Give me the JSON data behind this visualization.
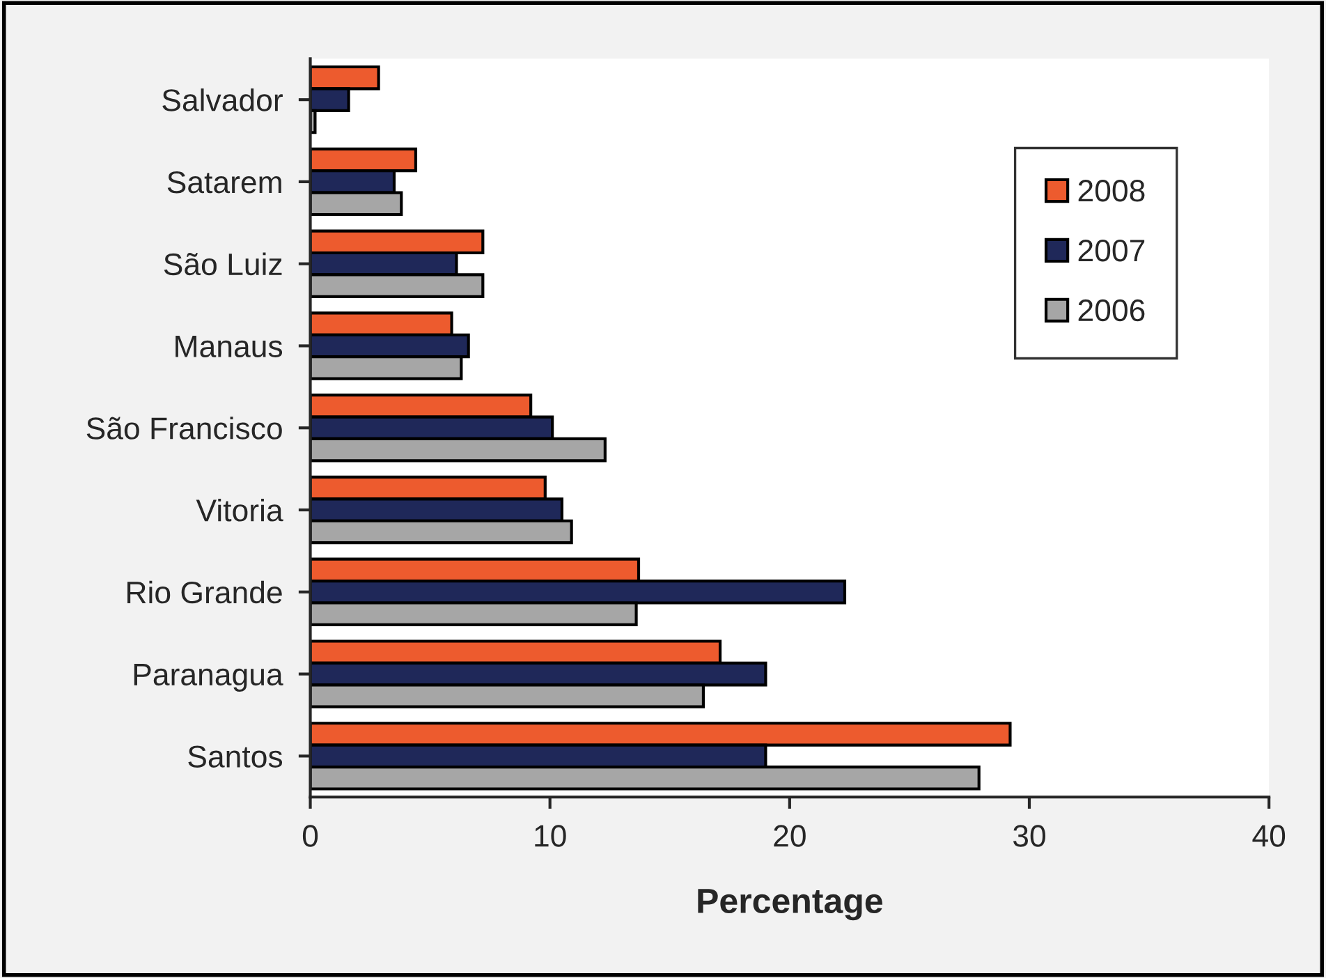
{
  "chart_data": {
    "type": "bar",
    "orientation": "horizontal",
    "xlabel": "Percentage",
    "categories": [
      "Salvador",
      "Satarem",
      "São Luiz",
      "Manaus",
      "São Francisco",
      "Vitoria",
      "Rio Grande",
      "Paranagua",
      "Santos"
    ],
    "series": [
      {
        "name": "2008",
        "color": "#ed5b2e",
        "values": [
          2.85,
          4.4,
          7.2,
          5.9,
          9.2,
          9.8,
          13.7,
          17.1,
          29.2
        ]
      },
      {
        "name": "2007",
        "color": "#1f2859",
        "values": [
          1.6,
          3.5,
          6.1,
          6.6,
          10.1,
          10.5,
          22.3,
          19.0,
          19.0
        ]
      },
      {
        "name": "2006",
        "color": "#a6a6a6",
        "values": [
          0.2,
          3.8,
          7.2,
          6.3,
          12.3,
          10.9,
          13.6,
          16.4,
          27.9
        ]
      }
    ],
    "xlim": [
      0,
      40
    ],
    "xticks": [
      0,
      10,
      20,
      30,
      40
    ],
    "grid": false,
    "legend": "top right"
  }
}
